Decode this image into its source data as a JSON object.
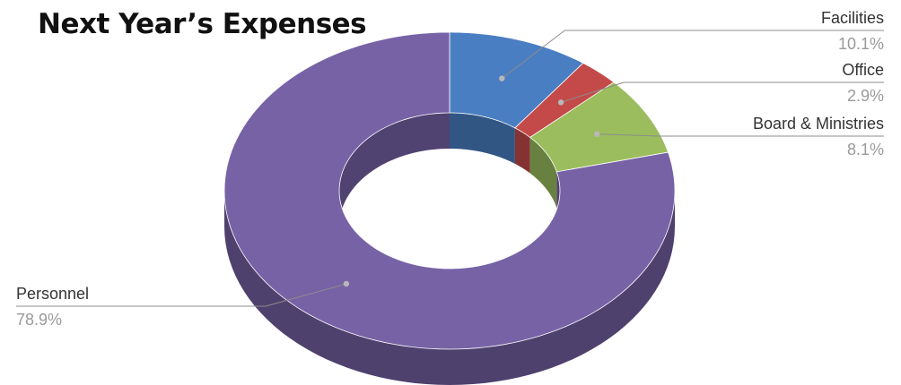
{
  "chart_data": {
    "type": "pie",
    "variant": "3d-donut",
    "title": "Next Year’s Expenses",
    "slices": [
      {
        "name": "Facilities",
        "value": 10.1,
        "label": "10.1%",
        "color": "#4a7ec2"
      },
      {
        "name": "Office",
        "value": 2.9,
        "label": "2.9%",
        "color": "#c44a4a"
      },
      {
        "name": "Board & Ministries",
        "value": 8.1,
        "label": "8.1%",
        "color": "#9bbd5e"
      },
      {
        "name": "Personnel",
        "value": 78.9,
        "label": "78.9%",
        "color": "#7762a6"
      }
    ],
    "legend": "none",
    "labels": "outside with leader lines"
  }
}
